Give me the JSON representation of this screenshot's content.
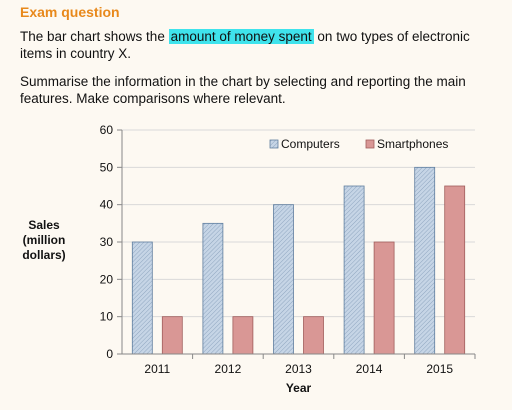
{
  "heading": "Exam question",
  "paragraph1": {
    "before": "The bar chart shows the ",
    "highlight": "amount of money spent",
    "after": " on two types of electronic items in country X."
  },
  "paragraph2": "Summarise the information in the chart by selecting and reporting the main features. Make comparisons where relevant.",
  "colors": {
    "heading": "#e8891c",
    "highlight": "#3fe3ec",
    "computers": "#b9cbe0",
    "smartphones": "#d99795"
  },
  "chart_data": {
    "type": "bar",
    "categories": [
      "2011",
      "2012",
      "2013",
      "2014",
      "2015"
    ],
    "series": [
      {
        "name": "Computers",
        "values": [
          30,
          35,
          40,
          45,
          50
        ]
      },
      {
        "name": "Smartphones",
        "values": [
          10,
          10,
          10,
          30,
          45
        ]
      }
    ],
    "xlabel": "Year",
    "ylabel": "Sales (million dollars)",
    "ylabel_lines": [
      "Sales",
      "(million",
      "dollars)"
    ],
    "ylim": [
      0,
      60
    ],
    "yticks": [
      0,
      10,
      20,
      30,
      40,
      50,
      60
    ],
    "grid": true,
    "legend": "top-right"
  }
}
